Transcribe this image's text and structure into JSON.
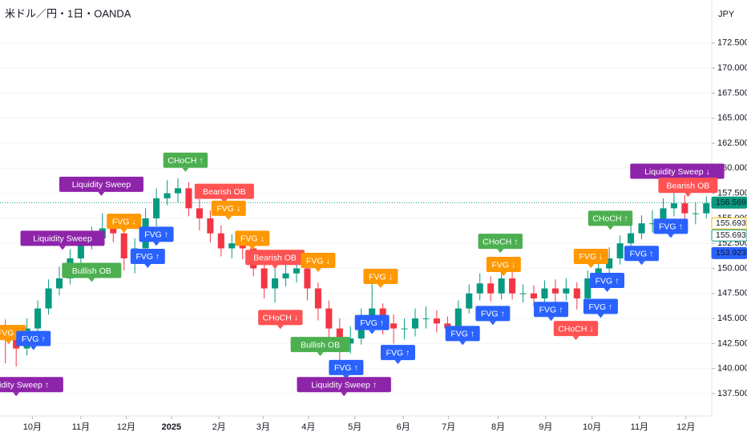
{
  "chart_data": {
    "type": "candlestick",
    "title": "米ドル／円・1日・OANDA",
    "currency": "JPY",
    "up_color": "#089981",
    "down_color": "#f23645",
    "x": [
      0,
      1,
      2,
      3,
      4,
      5,
      6,
      7,
      8,
      9,
      10,
      11,
      12,
      13,
      14,
      15,
      16,
      17,
      18,
      19,
      20,
      21,
      22,
      23,
      24,
      25,
      26,
      27,
      28,
      29,
      30,
      31,
      32,
      33,
      34,
      35,
      36,
      37,
      38,
      39,
      40,
      41,
      42,
      43,
      44,
      45,
      46,
      47,
      48,
      49,
      50,
      51,
      52,
      53,
      54,
      55,
      56,
      57,
      58,
      59,
      60,
      61,
      62,
      63,
      64,
      65
    ],
    "open": [
      144,
      143,
      142,
      144,
      146,
      148,
      149,
      151,
      152.5,
      153,
      154,
      153.5,
      151,
      152,
      155,
      157,
      157.5,
      158,
      156,
      155,
      153.5,
      152,
      152.5,
      152,
      150,
      148,
      149,
      149.5,
      150,
      148,
      146,
      144,
      142.5,
      143,
      145,
      146,
      144.5,
      144,
      144,
      145,
      145,
      144.5,
      144,
      146,
      147.5,
      148.5,
      147.5,
      149,
      147.5,
      147.5,
      147,
      148,
      147.5,
      148,
      147,
      149,
      150,
      151,
      152.5,
      153.5,
      154.5,
      154.5,
      156,
      156.5,
      155.5,
      155.5
    ],
    "high": [
      144.9,
      143.9,
      145,
      146.8,
      148.9,
      150.2,
      151.9,
      153.3,
      154.2,
      155.5,
      155,
      154,
      153,
      156,
      158,
      158.8,
      159,
      158.6,
      156.9,
      155.8,
      154.3,
      153.4,
      153.2,
      152.6,
      150.7,
      150,
      150.6,
      151.2,
      150.5,
      148.6,
      146.8,
      145,
      144.2,
      146,
      148.6,
      146.5,
      145.4,
      145,
      146,
      146.2,
      145.8,
      145.2,
      146.8,
      148.4,
      149.5,
      149.2,
      151,
      150.4,
      148.4,
      148.3,
      148.8,
      148.9,
      149,
      148.6,
      149.8,
      151,
      152.1,
      153.3,
      154.5,
      155.3,
      155.8,
      157,
      158,
      157.3,
      156.6,
      157.2
    ],
    "low": [
      140.5,
      140.2,
      141.3,
      143.5,
      145.4,
      147.3,
      148.4,
      150.4,
      151.9,
      152.4,
      152.6,
      149.8,
      149.5,
      151.4,
      154.2,
      156.3,
      156.6,
      155.2,
      153.8,
      152.6,
      151.2,
      151,
      150.9,
      149.2,
      147,
      146.6,
      148.2,
      148.6,
      146.8,
      144.8,
      142.4,
      139.9,
      141.5,
      142.4,
      144.3,
      143.4,
      142.5,
      142.9,
      143.2,
      144,
      143.6,
      143,
      143.5,
      145.5,
      146.8,
      146.7,
      146.9,
      146.9,
      146.6,
      146.2,
      146.3,
      146.6,
      146.8,
      145.9,
      146.4,
      148.1,
      149.3,
      150.4,
      151.8,
      152.9,
      153.6,
      153.9,
      155.2,
      154.7,
      154.4,
      155
    ],
    "close": [
      143,
      142,
      144,
      146,
      148,
      149,
      151,
      152.5,
      153,
      154,
      153.5,
      151,
      152,
      155,
      157,
      157.5,
      158,
      156,
      155,
      153.5,
      152,
      152.5,
      152,
      150,
      148,
      149,
      149.5,
      150,
      148,
      146,
      144,
      142.5,
      143,
      145,
      146,
      144.5,
      144,
      144,
      145,
      145,
      144.5,
      144,
      146,
      147.5,
      148.5,
      147.5,
      149,
      147.5,
      147.5,
      147,
      148,
      147.5,
      148,
      147,
      149,
      150,
      151,
      152.5,
      153.5,
      154.5,
      154.5,
      156,
      156.5,
      155.5,
      155.5,
      156.5
    ],
    "xlim": [
      -0.5,
      65.5
    ],
    "xticks": [
      {
        "value": 2.5,
        "label": "10月"
      },
      {
        "value": 7,
        "label": "11月"
      },
      {
        "value": 11.2,
        "label": "12月"
      },
      {
        "value": 15.4,
        "label": "2025"
      },
      {
        "value": 19.8,
        "label": "2月"
      },
      {
        "value": 23.9,
        "label": "3月"
      },
      {
        "value": 28.1,
        "label": "4月"
      },
      {
        "value": 32.4,
        "label": "5月"
      },
      {
        "value": 36.9,
        "label": "6月"
      },
      {
        "value": 41.1,
        "label": "7月"
      },
      {
        "value": 45.7,
        "label": "8月"
      },
      {
        "value": 50.1,
        "label": "9月"
      },
      {
        "value": 54.4,
        "label": "10月"
      },
      {
        "value": 58.8,
        "label": "11月"
      },
      {
        "value": 63.1,
        "label": "12月"
      }
    ],
    "ylim": [
      135.26,
      176.8
    ],
    "yticks": [
      {
        "value": 137.5,
        "label": "137.500"
      },
      {
        "value": 140,
        "label": "140.000"
      },
      {
        "value": 142.5,
        "label": "142.500"
      },
      {
        "value": 145,
        "label": "145.000"
      },
      {
        "value": 147.5,
        "label": "147.500"
      },
      {
        "value": 150,
        "label": "150.000"
      },
      {
        "value": 152.5,
        "label": "152.500"
      },
      {
        "value": 155,
        "label": "155.000"
      },
      {
        "value": 157.5,
        "label": "157.500"
      },
      {
        "value": 160,
        "label": "160.000"
      },
      {
        "value": 162.5,
        "label": "162.500"
      },
      {
        "value": 165,
        "label": "165.000"
      },
      {
        "value": 167.5,
        "label": "167.500"
      },
      {
        "value": 170,
        "label": "170.000"
      },
      {
        "value": 172.5,
        "label": "172.500"
      }
    ],
    "price_labels": [
      {
        "value": 156.569,
        "color": "#089981",
        "filled": true
      },
      {
        "value": 155.693,
        "color": "#f2b705",
        "filled": false
      },
      {
        "value": 155.693,
        "color": "#089981",
        "filled": false
      },
      {
        "value": 153.923,
        "color": "#2962ff",
        "filled": true
      }
    ],
    "annotations": [
      {
        "text": "Liquidity Sweep ↑",
        "color": "#8e24aa",
        "x": 1,
        "y": 138.4
      },
      {
        "text": "FVG ↓",
        "color": "#ff9800",
        "x": 0.3,
        "y": 143.6
      },
      {
        "text": "FVG ↑",
        "color": "#2962ff",
        "x": 2.6,
        "y": 143
      },
      {
        "text": "Liquidity Sweep",
        "color": "#8e24aa",
        "x": 5.3,
        "y": 153
      },
      {
        "text": "Liquidity Sweep",
        "color": "#8e24aa",
        "x": 8.9,
        "y": 158.4
      },
      {
        "text": "Bullish OB",
        "color": "#4caf50",
        "x": 8,
        "y": 149.8
      },
      {
        "text": "FVG ↓",
        "color": "#ff9800",
        "x": 11,
        "y": 154.7
      },
      {
        "text": "FVG ↑",
        "color": "#2962ff",
        "x": 14,
        "y": 153.4
      },
      {
        "text": "FVG ↑",
        "color": "#2962ff",
        "x": 13.2,
        "y": 151.2
      },
      {
        "text": "CHoCH ↑",
        "color": "#4caf50",
        "x": 16.7,
        "y": 160.8
      },
      {
        "text": "Bearish OB",
        "color": "#ff5252",
        "x": 20.3,
        "y": 157.7
      },
      {
        "text": "FVG ↓",
        "color": "#ff9800",
        "x": 20.7,
        "y": 156
      },
      {
        "text": "FVG ↓",
        "color": "#ff9800",
        "x": 22.9,
        "y": 153
      },
      {
        "text": "Bearish OB",
        "color": "#ff5252",
        "x": 25,
        "y": 151.1
      },
      {
        "text": "FVG ↓",
        "color": "#ff9800",
        "x": 29,
        "y": 150.8
      },
      {
        "text": "FVG ↓",
        "color": "#ff9800",
        "x": 34.8,
        "y": 149.2
      },
      {
        "text": "CHoCH ↓",
        "color": "#ff5252",
        "x": 25.5,
        "y": 145.1
      },
      {
        "text": "Bullish OB",
        "color": "#4caf50",
        "x": 29.2,
        "y": 142.4
      },
      {
        "text": "FVG ↑",
        "color": "#2962ff",
        "x": 34,
        "y": 144.6
      },
      {
        "text": "FVG ↑",
        "color": "#2962ff",
        "x": 31.6,
        "y": 140.1
      },
      {
        "text": "Liquidity Sweep ↑",
        "color": "#8e24aa",
        "x": 31.4,
        "y": 138.4
      },
      {
        "text": "FVG ↑",
        "color": "#2962ff",
        "x": 36.4,
        "y": 141.6
      },
      {
        "text": "FVG ↑",
        "color": "#2962ff",
        "x": 42.4,
        "y": 143.5
      },
      {
        "text": "FVG ↑",
        "color": "#2962ff",
        "x": 45.2,
        "y": 145.5
      },
      {
        "text": "CHoCH ↑",
        "color": "#4caf50",
        "x": 45.9,
        "y": 152.7
      },
      {
        "text": "FVG ↓",
        "color": "#ff9800",
        "x": 46.2,
        "y": 150.4
      },
      {
        "text": "FVG ↑",
        "color": "#2962ff",
        "x": 50.6,
        "y": 145.9
      },
      {
        "text": "CHoCH ↓",
        "color": "#ff5252",
        "x": 52.9,
        "y": 144
      },
      {
        "text": "FVG ↑",
        "color": "#2962ff",
        "x": 55.2,
        "y": 146.2
      },
      {
        "text": "FVG ↑",
        "color": "#2962ff",
        "x": 55.8,
        "y": 148.8
      },
      {
        "text": "FVG ↓",
        "color": "#ff9800",
        "x": 54.3,
        "y": 151.2
      },
      {
        "text": "CHoCH ↑",
        "color": "#4caf50",
        "x": 56.1,
        "y": 155
      },
      {
        "text": "FVG ↑",
        "color": "#2962ff",
        "x": 59,
        "y": 151.5
      },
      {
        "text": "FVG ↑",
        "color": "#2962ff",
        "x": 61.7,
        "y": 154.2
      },
      {
        "text": "Liquidity Sweep ↓",
        "color": "#8e24aa",
        "x": 62.3,
        "y": 159.7
      },
      {
        "text": "Bearish OB",
        "color": "#ff5252",
        "x": 63.3,
        "y": 158.3
      }
    ]
  }
}
